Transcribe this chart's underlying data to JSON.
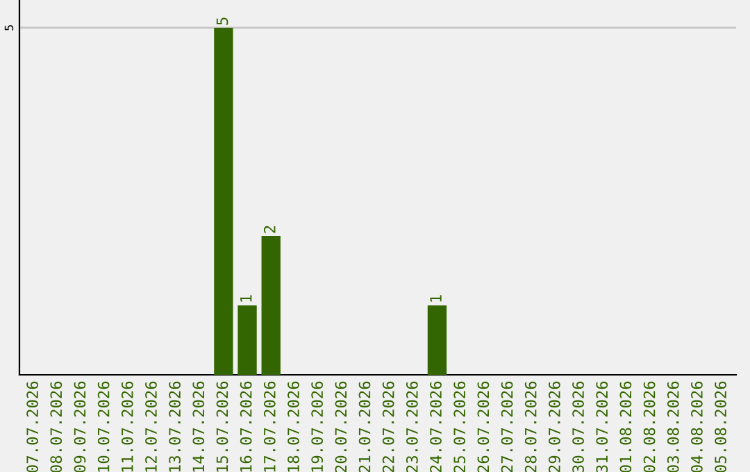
{
  "chart_data": {
    "type": "bar",
    "categories": [
      "07.07.2026",
      "08.07.2026",
      "09.07.2026",
      "10.07.2026",
      "11.07.2026",
      "12.07.2026",
      "13.07.2026",
      "14.07.2026",
      "15.07.2026",
      "16.07.2026",
      "17.07.2026",
      "18.07.2026",
      "19.07.2026",
      "20.07.2026",
      "21.07.2026",
      "22.07.2026",
      "23.07.2026",
      "24.07.2026",
      "25.07.2026",
      "26.07.2026",
      "27.07.2026",
      "28.07.2026",
      "29.07.2026",
      "30.07.2026",
      "31.07.2026",
      "01.08.2026",
      "02.08.2026",
      "03.08.2026",
      "04.08.2026",
      "05.08.2026"
    ],
    "values": [
      0,
      0,
      0,
      0,
      0,
      0,
      0,
      0,
      5,
      1,
      2,
      0,
      0,
      0,
      0,
      0,
      0,
      1,
      0,
      0,
      0,
      0,
      0,
      0,
      0,
      0,
      0,
      0,
      0,
      0
    ],
    "value_labels": [
      null,
      null,
      null,
      null,
      null,
      null,
      null,
      null,
      "5",
      "1",
      "2",
      null,
      null,
      null,
      null,
      null,
      null,
      "1",
      null,
      null,
      null,
      null,
      null,
      null,
      null,
      null,
      null,
      null,
      null,
      null
    ],
    "color": "#336600",
    "ylim": [
      0,
      5.4
    ],
    "yticks": [
      5
    ],
    "grid": "y"
  }
}
